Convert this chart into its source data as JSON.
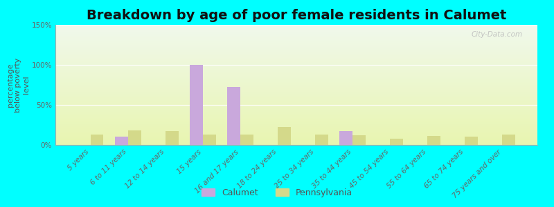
{
  "title": "Breakdown by age of poor female residents in Calumet",
  "ylabel": "percentage\nbelow poverty\nlevel",
  "categories": [
    "5 years",
    "6 to 11 years",
    "12 to 14 years",
    "15 years",
    "16 and 17 years",
    "18 to 24 years",
    "25 to 34 years",
    "35 to 44 years",
    "45 to 54 years",
    "55 to 64 years",
    "65 to 74 years",
    "75 years and over"
  ],
  "calumet_values": [
    0,
    10,
    0,
    100,
    72,
    0,
    0,
    17,
    0,
    0,
    0,
    0
  ],
  "pennsylvania_values": [
    13,
    18,
    17,
    13,
    13,
    22,
    13,
    12,
    8,
    11,
    10,
    13
  ],
  "calumet_color": "#c9a8dc",
  "pennsylvania_color": "#d4d98a",
  "background_color": "#00ffff",
  "grad_top": "#f0f8ec",
  "grad_bottom": "#e8f5b0",
  "ylim": [
    0,
    150
  ],
  "yticks": [
    0,
    50,
    100,
    150
  ],
  "ytick_labels": [
    "0%",
    "50%",
    "100%",
    "150%"
  ],
  "bar_width": 0.35,
  "title_fontsize": 14,
  "axis_label_fontsize": 8,
  "tick_fontsize": 7.5,
  "watermark": "City-Data.com",
  "legend_labels": [
    "Calumet",
    "Pennsylvania"
  ]
}
